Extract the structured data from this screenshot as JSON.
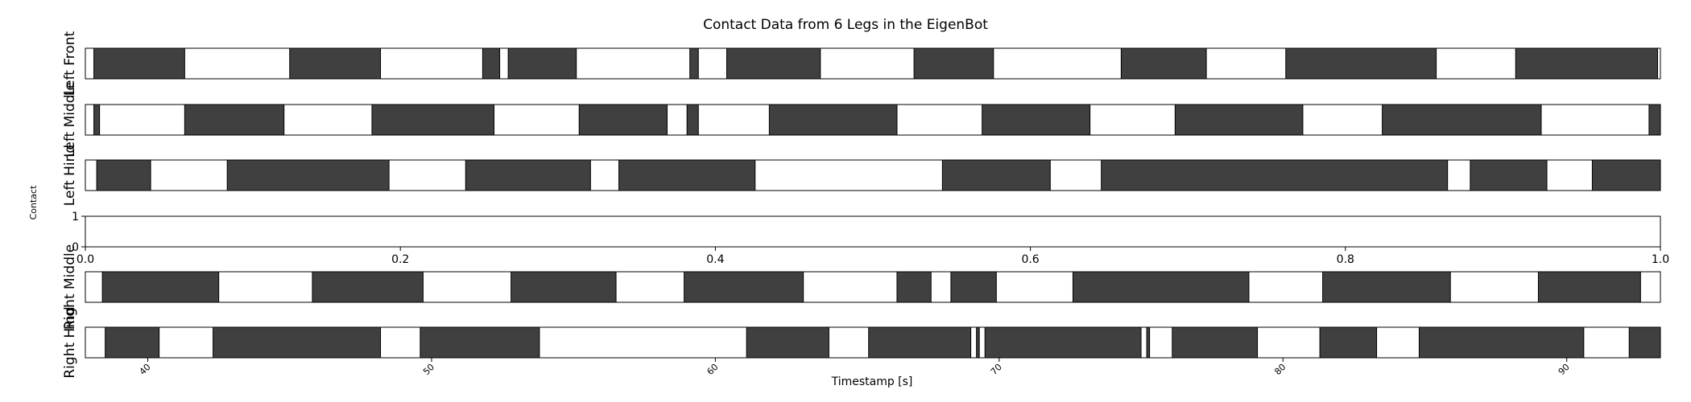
{
  "chart_data": {
    "type": "gantt",
    "title": "Contact Data from 6 Legs in the EigenBot",
    "ylabel": "Contact",
    "xlabel": "Timestamp [s]",
    "x_range": [
      37.8,
      93.3
    ],
    "timestamp_ticks": [
      40,
      50,
      60,
      70,
      80,
      90
    ],
    "legs": [
      {
        "name": "Left Front",
        "contact_intervals": [
          [
            38.1,
            41.3
          ],
          [
            45.0,
            48.2
          ],
          [
            51.8,
            52.4
          ],
          [
            52.7,
            55.1
          ],
          [
            59.1,
            59.4
          ],
          [
            60.4,
            63.7
          ],
          [
            67.0,
            69.8
          ],
          [
            74.3,
            77.3
          ],
          [
            80.1,
            85.4
          ],
          [
            88.2,
            93.2
          ]
        ]
      },
      {
        "name": "Left Middle",
        "contact_intervals": [
          [
            38.1,
            38.3
          ],
          [
            41.3,
            44.8
          ],
          [
            47.9,
            52.2
          ],
          [
            55.2,
            58.3
          ],
          [
            59.0,
            59.4
          ],
          [
            61.9,
            66.4
          ],
          [
            69.4,
            73.2
          ],
          [
            76.2,
            80.7
          ],
          [
            83.5,
            89.1
          ],
          [
            92.9,
            93.3
          ]
        ]
      },
      {
        "name": "Left Hind",
        "contact_intervals": [
          [
            38.2,
            40.1
          ],
          [
            42.8,
            48.5
          ],
          [
            51.2,
            55.6
          ],
          [
            56.6,
            61.4
          ],
          [
            68.0,
            71.8
          ],
          [
            73.6,
            85.8
          ],
          [
            86.6,
            89.3
          ],
          [
            90.9,
            93.3
          ]
        ]
      },
      {
        "name": "",
        "contact_intervals": []
      },
      {
        "name": "Right Middle",
        "contact_intervals": [
          [
            38.4,
            42.5
          ],
          [
            45.8,
            49.7
          ],
          [
            52.8,
            56.5
          ],
          [
            58.9,
            63.1
          ],
          [
            66.4,
            67.6
          ],
          [
            68.3,
            69.9
          ],
          [
            72.6,
            78.8
          ],
          [
            81.4,
            85.9
          ],
          [
            89.0,
            92.6
          ]
        ]
      },
      {
        "name": "Right Hind",
        "contact_intervals": [
          [
            38.5,
            40.4
          ],
          [
            42.3,
            48.2
          ],
          [
            49.6,
            53.8
          ],
          [
            61.1,
            64.0
          ],
          [
            65.4,
            69.0
          ],
          [
            69.2,
            69.3
          ],
          [
            69.5,
            75.0
          ],
          [
            75.2,
            75.3
          ],
          [
            76.1,
            79.1
          ],
          [
            81.3,
            83.3
          ],
          [
            84.8,
            90.6
          ],
          [
            92.2,
            93.3
          ]
        ]
      }
    ],
    "empty_axis": {
      "y_ticks": [
        "0",
        "1"
      ],
      "x_ticks": [
        "0.0",
        "0.2",
        "0.4",
        "0.6",
        "0.8",
        "1.0"
      ]
    },
    "bar_color": "#404040",
    "background": "#ffffff",
    "grid": false,
    "legend": "none"
  }
}
